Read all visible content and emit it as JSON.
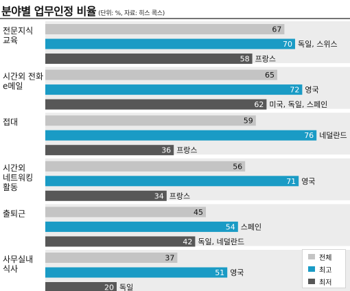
{
  "title": "분야별 업무인정 비율",
  "subtitle": "(단위: %, 자료: 히스 콕스)",
  "colors": {
    "overall": "#c4c4c4",
    "highest": "#1a9bc5",
    "lowest": "#575757",
    "panel": "#ececec"
  },
  "legend": [
    "전체",
    "최고",
    "최저"
  ],
  "chart_data": {
    "type": "bar",
    "orientation": "horizontal",
    "xlim": [
      0,
      80
    ],
    "grid": false,
    "legend_placement": "bottom-right",
    "categories": [
      [
        "전문지식",
        "교육"
      ],
      [
        "시간외 전화",
        "e메일"
      ],
      [
        "접대"
      ],
      [
        "시간외",
        "네트워킹",
        "활동"
      ],
      [
        "출퇴근"
      ],
      [
        "사무실내",
        "식사"
      ]
    ],
    "series": [
      {
        "name": "전체",
        "values": [
          67,
          65,
          59,
          56,
          45,
          37
        ],
        "notes": [
          "",
          "",
          "",
          "",
          "",
          ""
        ]
      },
      {
        "name": "최고",
        "values": [
          70,
          72,
          76,
          71,
          54,
          51
        ],
        "notes": [
          "독일, 스위스",
          "영국",
          "네덜란드",
          "영국",
          "스페인",
          "영국"
        ]
      },
      {
        "name": "최저",
        "values": [
          58,
          62,
          36,
          34,
          42,
          20
        ],
        "notes": [
          "프랑스",
          "미국, 독일, 스페인",
          "프랑스",
          "프랑스",
          "독일, 네덜란드",
          "독일"
        ]
      }
    ]
  }
}
